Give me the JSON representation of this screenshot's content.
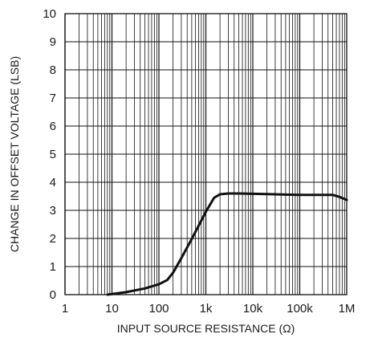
{
  "chart_data": {
    "type": "line",
    "title": "",
    "xlabel": "INPUT SOURCE RESISTANCE (Ω)",
    "ylabel": "CHANGE IN OFFSET VOLTAGE (LSB)",
    "x_scale": "log",
    "xlim": [
      1,
      1000000
    ],
    "ylim": [
      0,
      10
    ],
    "x_ticks": [
      1,
      10,
      100,
      1000,
      10000,
      100000,
      1000000
    ],
    "x_tick_labels": [
      "1",
      "10",
      "100",
      "1k",
      "10k",
      "100k",
      "1M"
    ],
    "y_ticks": [
      0,
      1,
      2,
      3,
      4,
      5,
      6,
      7,
      8,
      9,
      10
    ],
    "y_tick_labels": [
      "0",
      "1",
      "2",
      "3",
      "4",
      "5",
      "6",
      "7",
      "8",
      "9",
      "10"
    ],
    "grid": true,
    "minor_grid_x": true,
    "legend": "none",
    "line_color": "#111111",
    "series": [
      {
        "x": [
          8,
          10,
          20,
          50,
          100,
          150,
          200,
          300,
          500,
          700,
          1000,
          1500,
          2000,
          3000,
          5000,
          10000,
          20000,
          50000,
          100000,
          200000,
          500000,
          700000,
          1000000
        ],
        "values": [
          0.0,
          0.02,
          0.09,
          0.22,
          0.37,
          0.52,
          0.78,
          1.3,
          1.98,
          2.45,
          2.95,
          3.45,
          3.57,
          3.6,
          3.6,
          3.59,
          3.58,
          3.56,
          3.55,
          3.55,
          3.55,
          3.48,
          3.37
        ]
      }
    ]
  }
}
